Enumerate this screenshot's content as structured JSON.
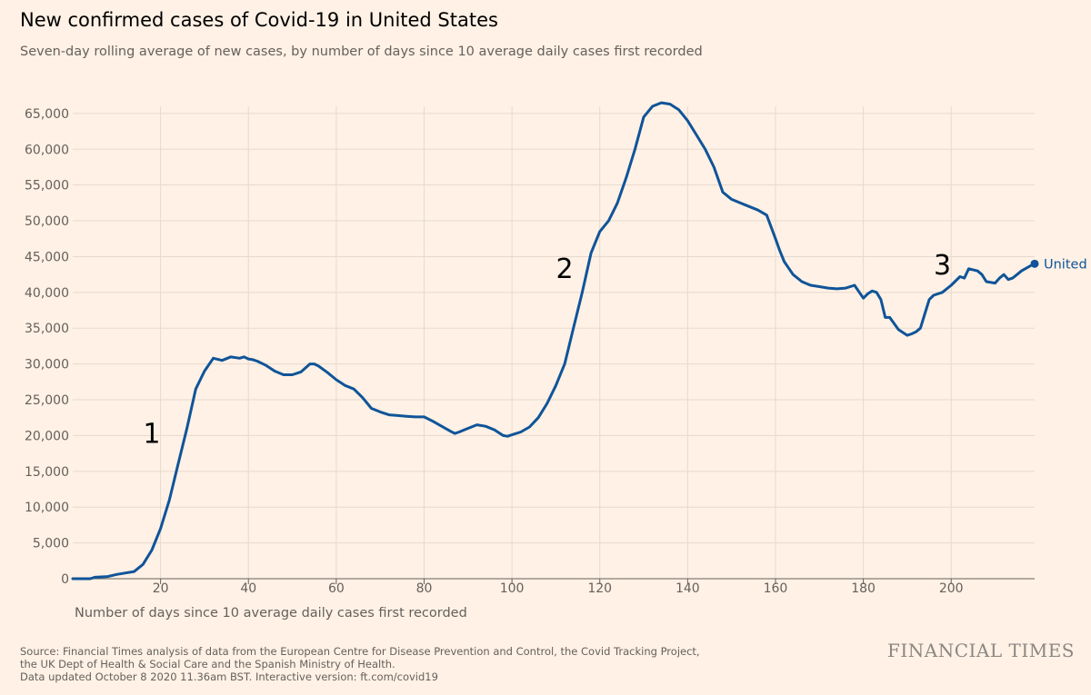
{
  "title": "New confirmed cases of Covid-19 in United States",
  "subtitle": "Seven-day rolling average of new cases, by number of days since 10 average daily cases first recorded",
  "source_lines": [
    "Source: Financial Times analysis of data from the European Centre for Disease Prevention and Control, the Covid Tracking Project,",
    "the UK Dept of Health & Social Care and the Spanish Ministry of Health.",
    "Data updated October 8 2020 11.36am BST. Interactive version: ft.com/covid19"
  ],
  "logo_text": "FINANCIAL TIMES",
  "colors": {
    "background": "#fff1e5",
    "line": "#0f5499",
    "grid": "#e6d9ce",
    "axis": "#66605c"
  },
  "chart_data": {
    "type": "line",
    "title": "New confirmed cases of Covid-19 in United States",
    "xlabel": "Number of days since 10 average daily cases first recorded",
    "ylabel": "",
    "xlim": [
      0,
      219
    ],
    "ylim": [
      0,
      66000
    ],
    "xticks": [
      20,
      40,
      60,
      80,
      100,
      120,
      140,
      160,
      180,
      200
    ],
    "xtick_labels": [
      "20",
      "40",
      "60",
      "80",
      "100",
      "120",
      "140",
      "160",
      "180",
      "200"
    ],
    "yticks": [
      0,
      5000,
      10000,
      15000,
      20000,
      25000,
      30000,
      35000,
      40000,
      45000,
      50000,
      55000,
      60000,
      65000
    ],
    "ytick_labels": [
      "0",
      "5,000",
      "10,000",
      "15,000",
      "20,000",
      "25,000",
      "30,000",
      "35,000",
      "40,000",
      "45,000",
      "50,000",
      "55,000",
      "60,000",
      "65,000"
    ],
    "grid": true,
    "annotations": [
      {
        "text": "1",
        "x": 18,
        "y": 19000
      },
      {
        "text": "2",
        "x": 112,
        "y": 42000
      },
      {
        "text": "3",
        "x": 198,
        "y": 42500
      }
    ],
    "series": [
      {
        "name": "United",
        "end_label": "United",
        "x": [
          0,
          4,
          5,
          8,
          10,
          12,
          14,
          16,
          18,
          20,
          22,
          24,
          26,
          28,
          30,
          32,
          34,
          36,
          38,
          39,
          40,
          41,
          42,
          44,
          46,
          48,
          50,
          52,
          54,
          55,
          56,
          58,
          60,
          62,
          64,
          66,
          68,
          70,
          72,
          74,
          76,
          78,
          80,
          82,
          84,
          86,
          87,
          88,
          90,
          92,
          94,
          96,
          98,
          99,
          100,
          102,
          104,
          106,
          108,
          110,
          112,
          114,
          116,
          118,
          120,
          122,
          124,
          126,
          128,
          130,
          132,
          134,
          136,
          138,
          140,
          142,
          144,
          146,
          148,
          150,
          152,
          154,
          156,
          158,
          160,
          161,
          162,
          164,
          166,
          168,
          170,
          172,
          174,
          176,
          178,
          180,
          181,
          182,
          183,
          184,
          185,
          186,
          188,
          190,
          191,
          192,
          193,
          194,
          195,
          196,
          198,
          200,
          202,
          203,
          204,
          206,
          207,
          208,
          210,
          211,
          212,
          213,
          214,
          215,
          216,
          218,
          219
        ],
        "values": [
          0,
          0,
          200,
          300,
          600,
          800,
          1000,
          2000,
          4000,
          7000,
          11000,
          16000,
          21000,
          26500,
          29000,
          30800,
          30500,
          31000,
          30800,
          31000,
          30700,
          30600,
          30400,
          29800,
          29000,
          28500,
          28500,
          28900,
          30000,
          30000,
          29700,
          28800,
          27800,
          27000,
          26500,
          25300,
          23800,
          23300,
          22900,
          22800,
          22700,
          22600,
          22600,
          22000,
          21300,
          20600,
          20300,
          20500,
          21000,
          21500,
          21300,
          20800,
          20000,
          19900,
          20100,
          20500,
          21200,
          22500,
          24500,
          27000,
          30000,
          35000,
          40000,
          45500,
          48500,
          50000,
          52500,
          56000,
          60000,
          64500,
          66000,
          66500,
          66300,
          65500,
          64000,
          62000,
          60000,
          57500,
          54000,
          53000,
          52500,
          52000,
          51500,
          50800,
          47500,
          45800,
          44300,
          42500,
          41500,
          41000,
          40800,
          40600,
          40500,
          40600,
          41000,
          39200,
          39800,
          40200,
          40000,
          39000,
          36500,
          36500,
          34800,
          34000,
          34200,
          34500,
          35000,
          37000,
          39000,
          39600,
          40000,
          41000,
          42200,
          42000,
          43300,
          43000,
          42500,
          41500,
          41300,
          42000,
          42500,
          41800,
          42000,
          42500,
          43000,
          43700,
          44000
        ]
      }
    ]
  }
}
